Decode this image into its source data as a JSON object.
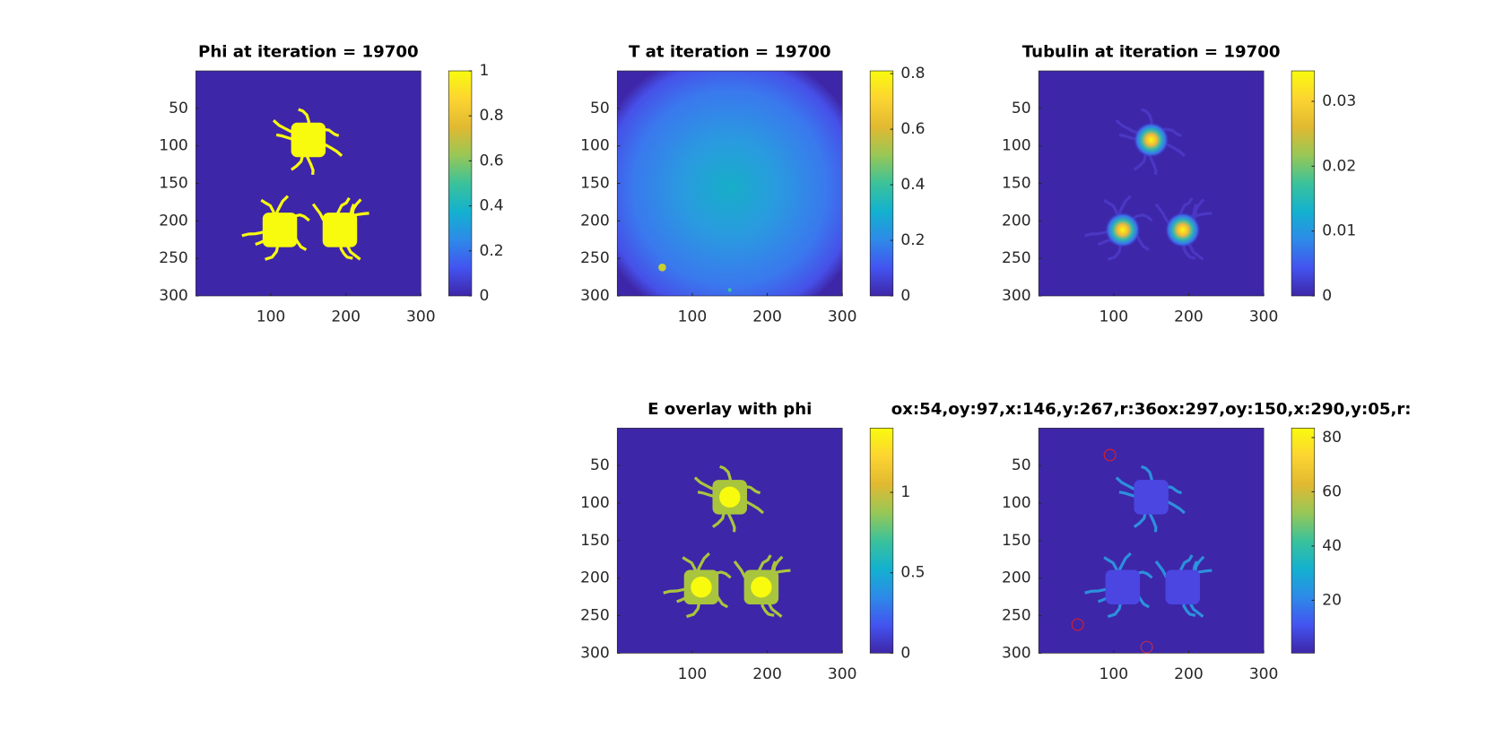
{
  "chart_data": [
    {
      "type": "heatmap",
      "title": "Phi at iteration = 19700",
      "colormap": "parula",
      "y_reversed": true,
      "xlim": [
        0,
        300
      ],
      "xticks": [
        100,
        200,
        300
      ],
      "ylim": [
        0,
        300
      ],
      "yticks": [
        50,
        100,
        150,
        200,
        250,
        300
      ],
      "clim": [
        0,
        1
      ],
      "cticks": [
        0,
        0.2,
        0.4,
        0.6,
        0.8,
        1
      ]
    },
    {
      "type": "heatmap",
      "title": "T at iteration = 19700",
      "colormap": "parula",
      "y_reversed": true,
      "xlim": [
        0,
        300
      ],
      "xticks": [
        100,
        200,
        300
      ],
      "ylim": [
        0,
        300
      ],
      "yticks": [
        50,
        100,
        150,
        200,
        250,
        300
      ],
      "clim": [
        0,
        0.81
      ],
      "cticks": [
        0,
        0.2,
        0.4,
        0.6,
        0.8
      ]
    },
    {
      "type": "heatmap",
      "title": "Tubulin at iteration = 19700",
      "colormap": "parula",
      "y_reversed": true,
      "xlim": [
        0,
        300
      ],
      "xticks": [
        100,
        200,
        300
      ],
      "ylim": [
        0,
        300
      ],
      "yticks": [
        50,
        100,
        150,
        200,
        250,
        300
      ],
      "clim": [
        0,
        0.0347
      ],
      "cticks": [
        0,
        0.01,
        0.02,
        0.03
      ]
    },
    {
      "type": "heatmap",
      "title": "E overlay with phi",
      "colormap": "parula",
      "y_reversed": true,
      "xlim": [
        0,
        300
      ],
      "xticks": [
        100,
        200,
        300
      ],
      "ylim": [
        0,
        300
      ],
      "yticks": [
        50,
        100,
        150,
        200,
        250,
        300
      ],
      "clim": [
        0,
        1.4
      ],
      "cticks": [
        0,
        0.5,
        1
      ]
    },
    {
      "type": "heatmap",
      "title": "ox:54,oy:97,x:146,y:267,r:36ox:297,oy:150,x:290,y:05,r:",
      "colormap": "parula",
      "y_reversed": true,
      "xlim": [
        0,
        300
      ],
      "xticks": [
        100,
        200,
        300
      ],
      "ylim": [
        0,
        300
      ],
      "yticks": [
        50,
        100,
        150,
        200,
        250,
        300
      ],
      "clim": [
        0.5,
        83.5
      ],
      "cticks": [
        20,
        40,
        60,
        80
      ],
      "markers": {
        "x": [
          95,
          52,
          144
        ],
        "y": [
          36,
          262,
          292
        ],
        "colors": [
          "#e02020",
          "#e02020",
          "#c03050"
        ]
      }
    }
  ]
}
